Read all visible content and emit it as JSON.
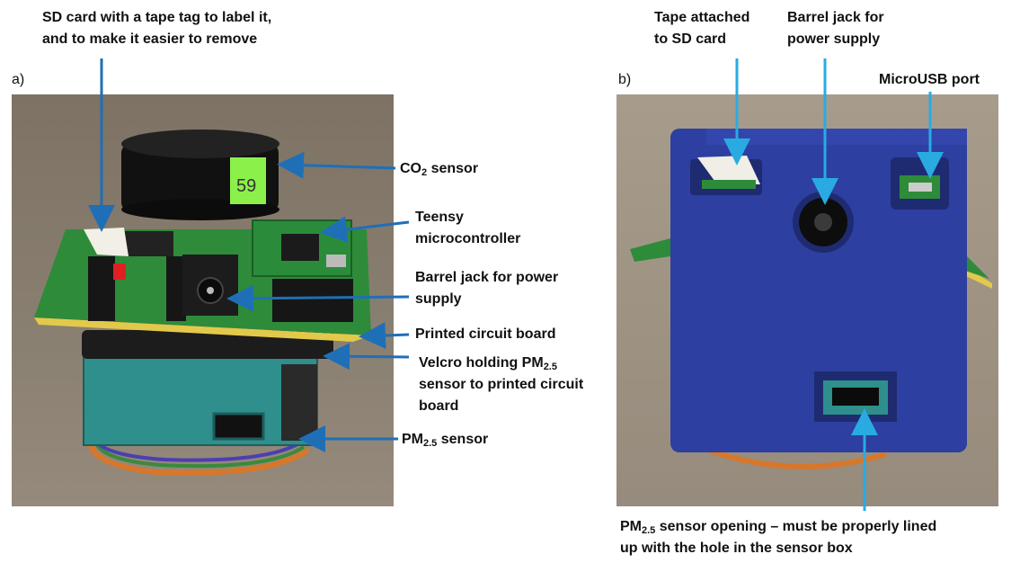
{
  "panels": [
    {
      "id": "a",
      "letter": "a)"
    },
    {
      "id": "b",
      "letter": "b)"
    }
  ],
  "labels_a": {
    "sd_card_line1": "SD card with a tape tag to label it,",
    "sd_card_line2": "and to make it easier to remove",
    "co2_pre": "CO",
    "co2_sub": "2",
    "co2_post": " sensor",
    "teensy_line1": "Teensy",
    "teensy_line2": "microcontroller",
    "barrel_line1": "Barrel jack for power",
    "barrel_line2": "supply",
    "pcb": "Printed circuit board",
    "velcro_pre": "Velcro holding PM",
    "velcro_sub": "2.5",
    "velcro_line2": "sensor to printed circuit",
    "velcro_line3": "board",
    "pm_pre": "PM",
    "pm_sub": "2.5",
    "pm_post": " sensor",
    "tag_number": "59"
  },
  "labels_b": {
    "tape_line1": "Tape attached",
    "tape_line2": "to SD card",
    "barrel_line1": "Barrel jack for",
    "barrel_line2": "power supply",
    "microusb": "MicroUSB port",
    "opening_pre": "PM",
    "opening_sub": "2.5",
    "opening_post": " sensor opening – must be properly lined",
    "opening_line2": "up with the hole in the sensor box"
  },
  "colors": {
    "arrow_a": "#1f6fb6",
    "arrow_b": "#29abe2",
    "pcb_green": "#2e8b3a",
    "box_blue": "#2d3fa0",
    "pm_sensor_teal": "#2f8f8c"
  }
}
